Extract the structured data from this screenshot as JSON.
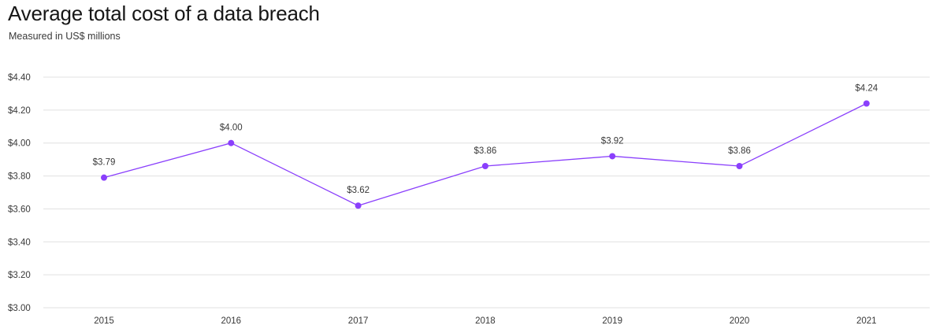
{
  "chart_data": {
    "type": "line",
    "title": "Average total cost of a data breach",
    "subtitle": "Measured in US$ millions",
    "categories": [
      "2015",
      "2016",
      "2017",
      "2018",
      "2019",
      "2020",
      "2021"
    ],
    "values": [
      3.79,
      4.0,
      3.62,
      3.86,
      3.92,
      3.86,
      4.24
    ],
    "data_labels": [
      "$3.79",
      "$4.00",
      "$3.62",
      "$3.86",
      "$3.92",
      "$3.86",
      "$4.24"
    ],
    "y_ticks": [
      3.0,
      3.2,
      3.4,
      3.6,
      3.8,
      4.0,
      4.2,
      4.4
    ],
    "y_tick_labels": [
      "$3.00",
      "$3.20",
      "$3.40",
      "$3.60",
      "$3.80",
      "$4.00",
      "$4.20",
      "$4.40"
    ],
    "ylim": [
      3.0,
      4.4
    ],
    "grid": true,
    "legend": "none",
    "line_color": "#8a3ffc"
  }
}
